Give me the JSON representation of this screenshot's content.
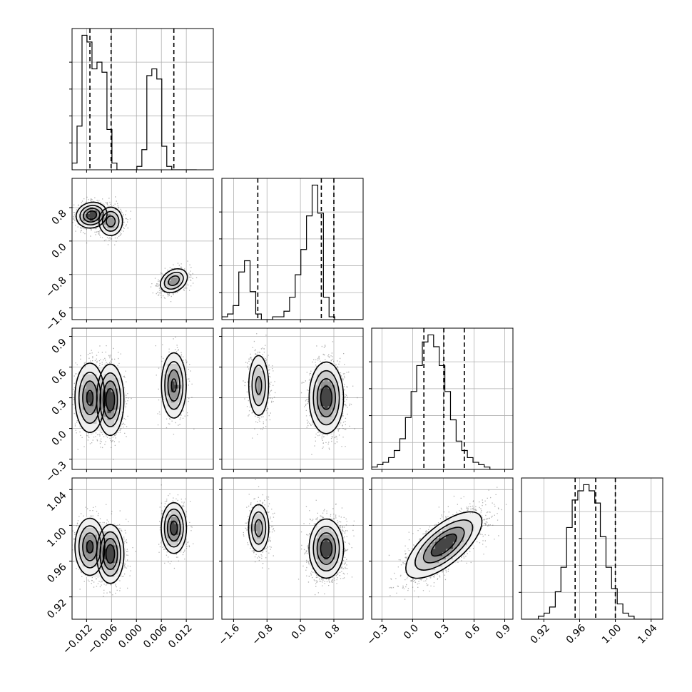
{
  "chart_data": {
    "type": "corner",
    "grid": true,
    "colors": {
      "line": "#000000",
      "grid": "#b0b0b0",
      "points": "#555555"
    },
    "params": [
      {
        "range": [
          -0.0155,
          0.0185
        ],
        "ticks": [
          -0.012,
          -0.006,
          0.0,
          0.006,
          0.012
        ],
        "tick_labels": [
          "−0.012",
          "−0.006",
          "0.000",
          "0.006",
          "0.012"
        ],
        "hist_bins": [
          -0.0155,
          -0.0143,
          -0.0131,
          -0.0119,
          -0.0107,
          -0.0095,
          -0.0083,
          -0.0071,
          -0.0059,
          -0.0047,
          -0.0035,
          -0.0023,
          -0.0011,
          0.0001,
          0.0013,
          0.0025,
          0.0037,
          0.0049,
          0.0061,
          0.0073,
          0.0085,
          0.0097,
          0.0109,
          0.0121,
          0.0133,
          0.0145
        ],
        "hist_counts": [
          2,
          13,
          40,
          38,
          30,
          32,
          29,
          12,
          2,
          0,
          0,
          0,
          0,
          1,
          6,
          28,
          30,
          27,
          7,
          1,
          0,
          0,
          0,
          0,
          0
        ],
        "quantiles": [
          -0.0112,
          -0.0061,
          0.009
        ]
      },
      {
        "range": [
          -1.88,
          1.5
        ],
        "ticks": [
          -1.6,
          -0.8,
          0.0,
          0.8
        ],
        "tick_labels": [
          "−1.6",
          "−0.8",
          "0.0",
          "0.8"
        ],
        "hist_bins": [
          -1.88,
          -1.745,
          -1.61,
          -1.475,
          -1.34,
          -1.205,
          -1.07,
          -0.935,
          -0.8,
          -0.665,
          -0.53,
          -0.395,
          -0.26,
          -0.125,
          0.01,
          0.145,
          0.28,
          0.415,
          0.55,
          0.685,
          0.82,
          0.955,
          1.09,
          1.225,
          1.36,
          1.5
        ],
        "hist_counts": [
          1,
          2,
          5,
          17,
          21,
          10,
          2,
          0,
          0,
          1,
          1,
          3,
          8,
          16,
          25,
          37,
          48,
          38,
          8,
          1,
          0,
          0,
          0,
          0,
          0
        ],
        "quantiles": [
          -1.02,
          0.5,
          0.8
        ]
      },
      {
        "range": [
          -0.4,
          0.98
        ],
        "ticks": [
          -0.3,
          0.0,
          0.3,
          0.6,
          0.9
        ],
        "tick_labels": [
          "−0.3",
          "0.0",
          "0.3",
          "0.6",
          "0.9"
        ],
        "hist_bins": [
          -0.4,
          -0.345,
          -0.29,
          -0.235,
          -0.18,
          -0.125,
          -0.07,
          -0.015,
          0.04,
          0.095,
          0.15,
          0.205,
          0.26,
          0.315,
          0.37,
          0.425,
          0.48,
          0.535,
          0.59,
          0.645,
          0.7,
          0.755,
          0.81,
          0.865,
          0.92,
          0.98
        ],
        "hist_counts": [
          1,
          2,
          3,
          5,
          8,
          13,
          22,
          33,
          44,
          54,
          57,
          52,
          44,
          33,
          21,
          12,
          8,
          5,
          3,
          2,
          1,
          0,
          0,
          0,
          0
        ],
        "quantiles": [
          0.11,
          0.305,
          0.505
        ]
      },
      {
        "range": [
          0.895,
          1.053
        ],
        "ticks": [
          0.92,
          0.96,
          1.0,
          1.04
        ],
        "tick_labels": [
          "0.92",
          "0.96",
          "1.00",
          "1.04"
        ],
        "hist_bins": [
          0.895,
          0.9013,
          0.9076,
          0.9139,
          0.9202,
          0.9265,
          0.9328,
          0.9391,
          0.9454,
          0.9517,
          0.958,
          0.9643,
          0.9706,
          0.9769,
          0.9832,
          0.9895,
          0.9958,
          1.0021,
          1.0084,
          1.0147,
          1.021,
          1.0273,
          1.0336,
          1.0399,
          1.0462,
          1.053
        ],
        "hist_counts": [
          0,
          0,
          0,
          1,
          2,
          4,
          9,
          17,
          30,
          39,
          42,
          44,
          42,
          38,
          27,
          17,
          10,
          5,
          2,
          1,
          0,
          0,
          0,
          0,
          0
        ],
        "quantiles": [
          0.955,
          0.978,
          1.0
        ]
      }
    ],
    "scatter_panels": [
      {
        "row": 1,
        "col": 0,
        "density_peak": [
          -0.0112,
          0.62
        ],
        "clusters": [
          {
            "center": [
              -0.0108,
              0.62
            ],
            "sd": [
              0.0018,
              0.15
            ],
            "corr": 0.1,
            "weight": 0.42
          },
          {
            "center": [
              -0.0062,
              0.47
            ],
            "sd": [
              0.0015,
              0.18
            ],
            "corr": 0.0,
            "weight": 0.3
          },
          {
            "center": [
              0.009,
              -0.95
            ],
            "sd": [
              0.0017,
              0.15
            ],
            "corr": 0.3,
            "weight": 0.28
          }
        ]
      },
      {
        "row": 2,
        "col": 0,
        "density_peak": [
          -0.0062,
          0.27
        ],
        "clusters": [
          {
            "center": [
              -0.0112,
              0.3
            ],
            "sd": [
              0.0018,
              0.17
            ],
            "corr": 0.0,
            "weight": 0.36
          },
          {
            "center": [
              -0.0063,
              0.28
            ],
            "sd": [
              0.0016,
              0.17
            ],
            "corr": 0.0,
            "weight": 0.36
          },
          {
            "center": [
              0.009,
              0.42
            ],
            "sd": [
              0.0015,
              0.16
            ],
            "corr": 0.0,
            "weight": 0.28
          }
        ]
      },
      {
        "row": 2,
        "col": 1,
        "density_peak": [
          0.68,
          0.27
        ],
        "clusters": [
          {
            "center": [
              -1.0,
              0.42
            ],
            "sd": [
              0.13,
              0.16
            ],
            "corr": 0.0,
            "weight": 0.28
          },
          {
            "center": [
              0.62,
              0.3
            ],
            "sd": [
              0.2,
              0.17
            ],
            "corr": 0.0,
            "weight": 0.72
          }
        ]
      },
      {
        "row": 3,
        "col": 0,
        "density_peak": [
          -0.0062,
          0.966
        ],
        "clusters": [
          {
            "center": [
              -0.0112,
              0.976
            ],
            "sd": [
              0.0018,
              0.016
            ],
            "corr": 0.0,
            "weight": 0.36
          },
          {
            "center": [
              -0.0063,
              0.968
            ],
            "sd": [
              0.0016,
              0.016
            ],
            "corr": 0.0,
            "weight": 0.36
          },
          {
            "center": [
              0.009,
              0.997
            ],
            "sd": [
              0.0015,
              0.014
            ],
            "corr": 0.0,
            "weight": 0.28
          }
        ]
      },
      {
        "row": 3,
        "col": 1,
        "density_peak": [
          0.68,
          0.972
        ],
        "clusters": [
          {
            "center": [
              -1.0,
              0.997
            ],
            "sd": [
              0.13,
              0.014
            ],
            "corr": 0.0,
            "weight": 0.28
          },
          {
            "center": [
              0.62,
              0.974
            ],
            "sd": [
              0.2,
              0.016
            ],
            "corr": 0.0,
            "weight": 0.72
          }
        ]
      },
      {
        "row": 3,
        "col": 2,
        "density_peak": [
          0.23,
          0.972
        ],
        "clusters": [
          {
            "center": [
              0.305,
              0.978
            ],
            "sd": [
              0.18,
              0.018
            ],
            "corr": 0.7,
            "weight": 1.0
          }
        ]
      }
    ]
  }
}
